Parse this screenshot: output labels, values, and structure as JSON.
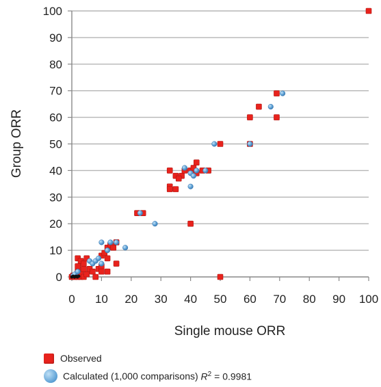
{
  "chart_data": {
    "type": "scatter",
    "xlabel": "Single mouse ORR",
    "ylabel": "Group ORR",
    "xlim": [
      0,
      100
    ],
    "ylim": [
      0,
      100
    ],
    "xticks": [
      "0",
      "10",
      "20",
      "30",
      "40",
      "50",
      "60",
      "70",
      "80",
      "90",
      "100"
    ],
    "yticks": [
      "0",
      "10",
      "20",
      "30",
      "40",
      "50",
      "60",
      "70",
      "80",
      "90",
      "100"
    ],
    "grid": "horizontal",
    "legend_position": "bottom-left",
    "series": [
      {
        "name": "Observed",
        "marker": "square",
        "color": "#e8231d",
        "points": [
          [
            0,
            0
          ],
          [
            0.5,
            0.5
          ],
          [
            1,
            0
          ],
          [
            1.5,
            0.3
          ],
          [
            2,
            0
          ],
          [
            3,
            0
          ],
          [
            2,
            2
          ],
          [
            3,
            1
          ],
          [
            4,
            0
          ],
          [
            5,
            1
          ],
          [
            2,
            7
          ],
          [
            3,
            6
          ],
          [
            4,
            5
          ],
          [
            5,
            7
          ],
          [
            2,
            4
          ],
          [
            4,
            3
          ],
          [
            6,
            3
          ],
          [
            7,
            2
          ],
          [
            8,
            0
          ],
          [
            9,
            3
          ],
          [
            10,
            4
          ],
          [
            10,
            8
          ],
          [
            11,
            9
          ],
          [
            12,
            11
          ],
          [
            12,
            7
          ],
          [
            13,
            12
          ],
          [
            14,
            11
          ],
          [
            15,
            13
          ],
          [
            15,
            5
          ],
          [
            12,
            2
          ],
          [
            10,
            2
          ],
          [
            22,
            24
          ],
          [
            24,
            24
          ],
          [
            33,
            40
          ],
          [
            33,
            34
          ],
          [
            33,
            33
          ],
          [
            35,
            33
          ],
          [
            35,
            38
          ],
          [
            37,
            38
          ],
          [
            36,
            37
          ],
          [
            38,
            40
          ],
          [
            40,
            40
          ],
          [
            41,
            41
          ],
          [
            42,
            39
          ],
          [
            42,
            43
          ],
          [
            44,
            40
          ],
          [
            46,
            40
          ],
          [
            40,
            20
          ],
          [
            50,
            50
          ],
          [
            50,
            0
          ],
          [
            60,
            60
          ],
          [
            60,
            50
          ],
          [
            63,
            64
          ],
          [
            69,
            69
          ],
          [
            69,
            60
          ],
          [
            100,
            100
          ]
        ]
      },
      {
        "name": "Calculated (1,000 comparisons)",
        "marker": "circle",
        "color": "#5b9fd4",
        "points": [
          [
            0.5,
            0.5
          ],
          [
            1,
            1
          ],
          [
            2,
            2
          ],
          [
            6,
            6
          ],
          [
            7,
            5
          ],
          [
            8,
            6
          ],
          [
            9,
            7
          ],
          [
            10,
            5
          ],
          [
            10,
            13
          ],
          [
            12,
            10
          ],
          [
            13,
            13
          ],
          [
            15,
            13
          ],
          [
            18,
            11
          ],
          [
            23,
            24
          ],
          [
            28,
            20
          ],
          [
            38,
            41
          ],
          [
            40,
            39
          ],
          [
            41,
            38
          ],
          [
            40,
            34
          ],
          [
            42,
            40
          ],
          [
            45,
            40
          ],
          [
            48,
            50
          ],
          [
            60,
            50
          ],
          [
            67,
            64
          ],
          [
            71,
            69
          ]
        ]
      }
    ]
  },
  "legend": {
    "observed_label": "Observed",
    "calculated_label": "Calculated (1,000 comparisons)",
    "r2_symbol": "R",
    "r2_exponent": "2",
    "r2_value": " = 0.9981"
  }
}
